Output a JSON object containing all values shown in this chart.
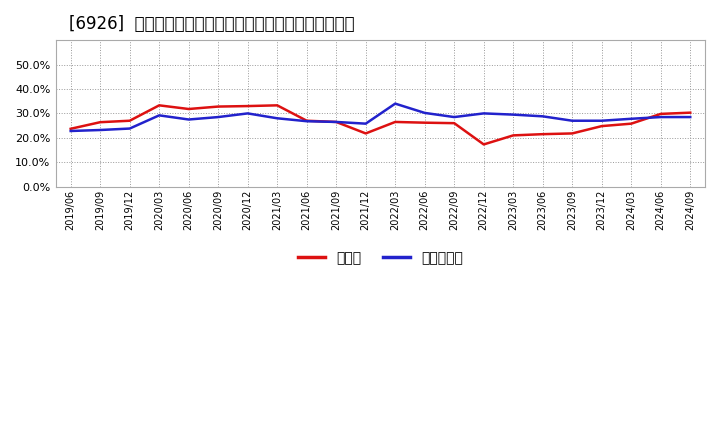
{
  "title": "[6926]  現頲金、有利子負債の総資産に対する比率の推移",
  "x_labels": [
    "2019/06",
    "2019/09",
    "2019/12",
    "2020/03",
    "2020/06",
    "2020/09",
    "2020/12",
    "2021/03",
    "2021/06",
    "2021/09",
    "2021/12",
    "2022/03",
    "2022/06",
    "2022/09",
    "2022/12",
    "2023/03",
    "2023/06",
    "2023/09",
    "2023/12",
    "2024/03",
    "2024/06",
    "2024/09"
  ],
  "cash": [
    0.237,
    0.264,
    0.27,
    0.333,
    0.318,
    0.328,
    0.33,
    0.333,
    0.27,
    0.265,
    0.218,
    0.265,
    0.262,
    0.26,
    0.173,
    0.21,
    0.215,
    0.218,
    0.248,
    0.258,
    0.298,
    0.303
  ],
  "debt": [
    0.228,
    0.232,
    0.238,
    0.292,
    0.275,
    0.285,
    0.3,
    0.28,
    0.268,
    0.265,
    0.258,
    0.34,
    0.302,
    0.285,
    0.3,
    0.295,
    0.288,
    0.27,
    0.27,
    0.278,
    0.285,
    0.285
  ],
  "cash_color": "#dd1111",
  "debt_color": "#2222cc",
  "background_color": "#ffffff",
  "grid_color": "#999999",
  "ylim": [
    0.0,
    0.6
  ],
  "yticks": [
    0.0,
    0.1,
    0.2,
    0.3,
    0.4,
    0.5
  ],
  "legend_cash": "現頲金",
  "legend_debt": "有利子負債",
  "title_fontsize": 12,
  "tick_fontsize": 8,
  "legend_fontsize": 10
}
